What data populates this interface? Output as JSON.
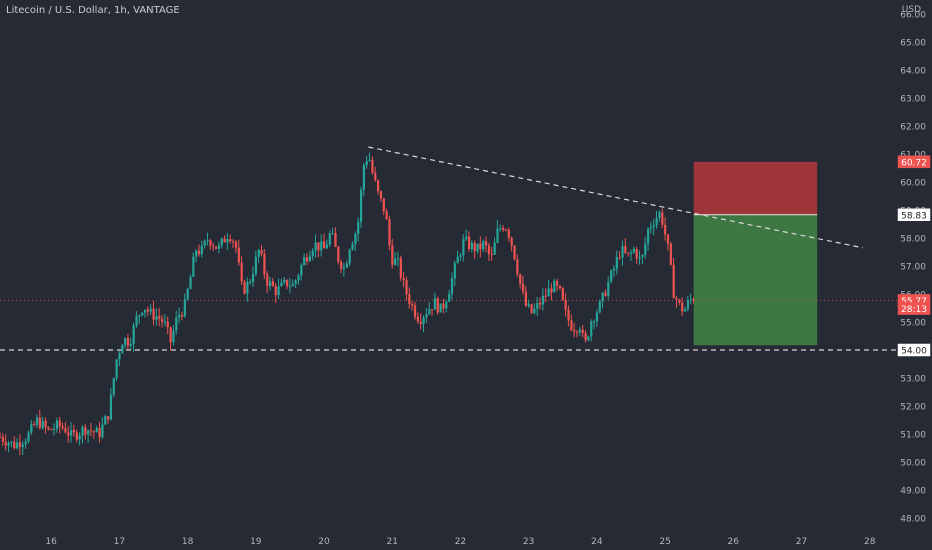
{
  "header": {
    "symbol_title": "Litecoin / U.S. Dollar, 1h, VANTAGE",
    "price_axis_unit": "USD"
  },
  "colors": {
    "background": "#262a35",
    "up": "#26a69a",
    "down": "#ef5350",
    "stop_zone": "#a7363a",
    "target_zone": "#3f7e42",
    "axis_text": "#b2b5be",
    "dashed_line": "#d8d8d8"
  },
  "chart_data": {
    "type": "candlestick",
    "title": "Litecoin / U.S. Dollar, 1h, VANTAGE",
    "y_axis": {
      "unit": "USD",
      "range": [
        47.5,
        66.5
      ],
      "ticks": [
        "48.00",
        "49.00",
        "50.00",
        "51.00",
        "52.00",
        "53.00",
        "54.00",
        "55.00",
        "56.00",
        "57.00",
        "58.00",
        "59.00",
        "60.00",
        "61.00",
        "62.00",
        "63.00",
        "64.00",
        "65.00",
        "66.00"
      ]
    },
    "x_axis": {
      "range_days": [
        15.25,
        28.4
      ],
      "ticks": [
        "16",
        "17",
        "18",
        "19",
        "20",
        "21",
        "22",
        "23",
        "24",
        "25",
        "26",
        "27",
        "28"
      ]
    },
    "price_path": [
      [
        15.25,
        50.9
      ],
      [
        15.45,
        50.6
      ],
      [
        15.65,
        50.9
      ],
      [
        15.8,
        51.5
      ],
      [
        15.95,
        51.1
      ],
      [
        16.1,
        51.3
      ],
      [
        16.2,
        51.2
      ],
      [
        16.3,
        50.9
      ],
      [
        16.5,
        51.2
      ],
      [
        16.7,
        51.0
      ],
      [
        16.85,
        51.8
      ],
      [
        16.95,
        53.6
      ],
      [
        17.05,
        54.4
      ],
      [
        17.15,
        54.3
      ],
      [
        17.25,
        55.1
      ],
      [
        17.35,
        55.6
      ],
      [
        17.45,
        55.3
      ],
      [
        17.55,
        55.2
      ],
      [
        17.65,
        55.0
      ],
      [
        17.75,
        54.3
      ],
      [
        17.85,
        55.2
      ],
      [
        17.95,
        55.5
      ],
      [
        18.05,
        56.7
      ],
      [
        18.12,
        57.6
      ],
      [
        18.2,
        57.5
      ],
      [
        18.3,
        58.0
      ],
      [
        18.45,
        57.6
      ],
      [
        18.6,
        58.2
      ],
      [
        18.7,
        57.8
      ],
      [
        18.8,
        56.1
      ],
      [
        18.9,
        56.4
      ],
      [
        19.05,
        57.6
      ],
      [
        19.15,
        56.5
      ],
      [
        19.3,
        56.1
      ],
      [
        19.45,
        56.4
      ],
      [
        19.55,
        56.3
      ],
      [
        19.7,
        57.2
      ],
      [
        19.85,
        57.8
      ],
      [
        20.0,
        57.6
      ],
      [
        20.1,
        58.2
      ],
      [
        20.2,
        57.3
      ],
      [
        20.3,
        56.9
      ],
      [
        20.38,
        57.8
      ],
      [
        20.45,
        58.1
      ],
      [
        20.5,
        58.6
      ],
      [
        20.58,
        60.6
      ],
      [
        20.65,
        61.0
      ],
      [
        20.72,
        60.2
      ],
      [
        20.8,
        59.5
      ],
      [
        20.9,
        58.9
      ],
      [
        20.98,
        57.3
      ],
      [
        21.08,
        57.1
      ],
      [
        21.18,
        56.2
      ],
      [
        21.3,
        55.5
      ],
      [
        21.4,
        55.1
      ],
      [
        21.5,
        55.4
      ],
      [
        21.62,
        55.7
      ],
      [
        21.72,
        55.4
      ],
      [
        21.85,
        56.3
      ],
      [
        21.95,
        57.2
      ],
      [
        22.05,
        57.9
      ],
      [
        22.15,
        57.7
      ],
      [
        22.25,
        57.6
      ],
      [
        22.35,
        57.8
      ],
      [
        22.45,
        57.2
      ],
      [
        22.55,
        58.3
      ],
      [
        22.65,
        58.5
      ],
      [
        22.72,
        58.1
      ],
      [
        22.8,
        57.3
      ],
      [
        22.88,
        56.3
      ],
      [
        22.95,
        55.6
      ],
      [
        23.05,
        55.3
      ],
      [
        23.2,
        55.8
      ],
      [
        23.35,
        56.3
      ],
      [
        23.45,
        56.1
      ],
      [
        23.55,
        55.2
      ],
      [
        23.65,
        54.8
      ],
      [
        23.75,
        54.9
      ],
      [
        23.82,
        54.1
      ],
      [
        23.92,
        55.1
      ],
      [
        24.05,
        55.6
      ],
      [
        24.15,
        56.3
      ],
      [
        24.25,
        56.9
      ],
      [
        24.35,
        57.6
      ],
      [
        24.45,
        57.3
      ],
      [
        24.55,
        57.6
      ],
      [
        24.65,
        57.1
      ],
      [
        24.75,
        58.3
      ],
      [
        24.85,
        58.7
      ],
      [
        24.93,
        58.9
      ],
      [
        24.98,
        58.4
      ],
      [
        25.05,
        57.5
      ],
      [
        25.12,
        56.1
      ],
      [
        25.2,
        55.6
      ],
      [
        25.28,
        55.4
      ],
      [
        25.36,
        55.8
      ],
      [
        25.42,
        55.77
      ]
    ],
    "drawings": {
      "descending_trendline": {
        "from": [
          20.65,
          61.25
        ],
        "to": [
          27.9,
          57.65
        ]
      },
      "horizontal_support": {
        "price": 54.0
      },
      "short_position": {
        "x_start": 25.42,
        "x_end": 27.23,
        "stop": 60.72,
        "entry": 58.83,
        "target": 54.17
      }
    },
    "price_labels": [
      {
        "text": "60.72",
        "price": 60.72,
        "kind": "stop"
      },
      {
        "text": "58.83",
        "price": 58.83,
        "kind": "entry"
      },
      {
        "text": "55.77",
        "price": 55.77,
        "kind": "last"
      },
      {
        "text": "28:13",
        "price": 55.48,
        "kind": "countdown"
      },
      {
        "text": "54.00",
        "price": 54.0,
        "kind": "level"
      }
    ],
    "last_price": 55.77
  }
}
